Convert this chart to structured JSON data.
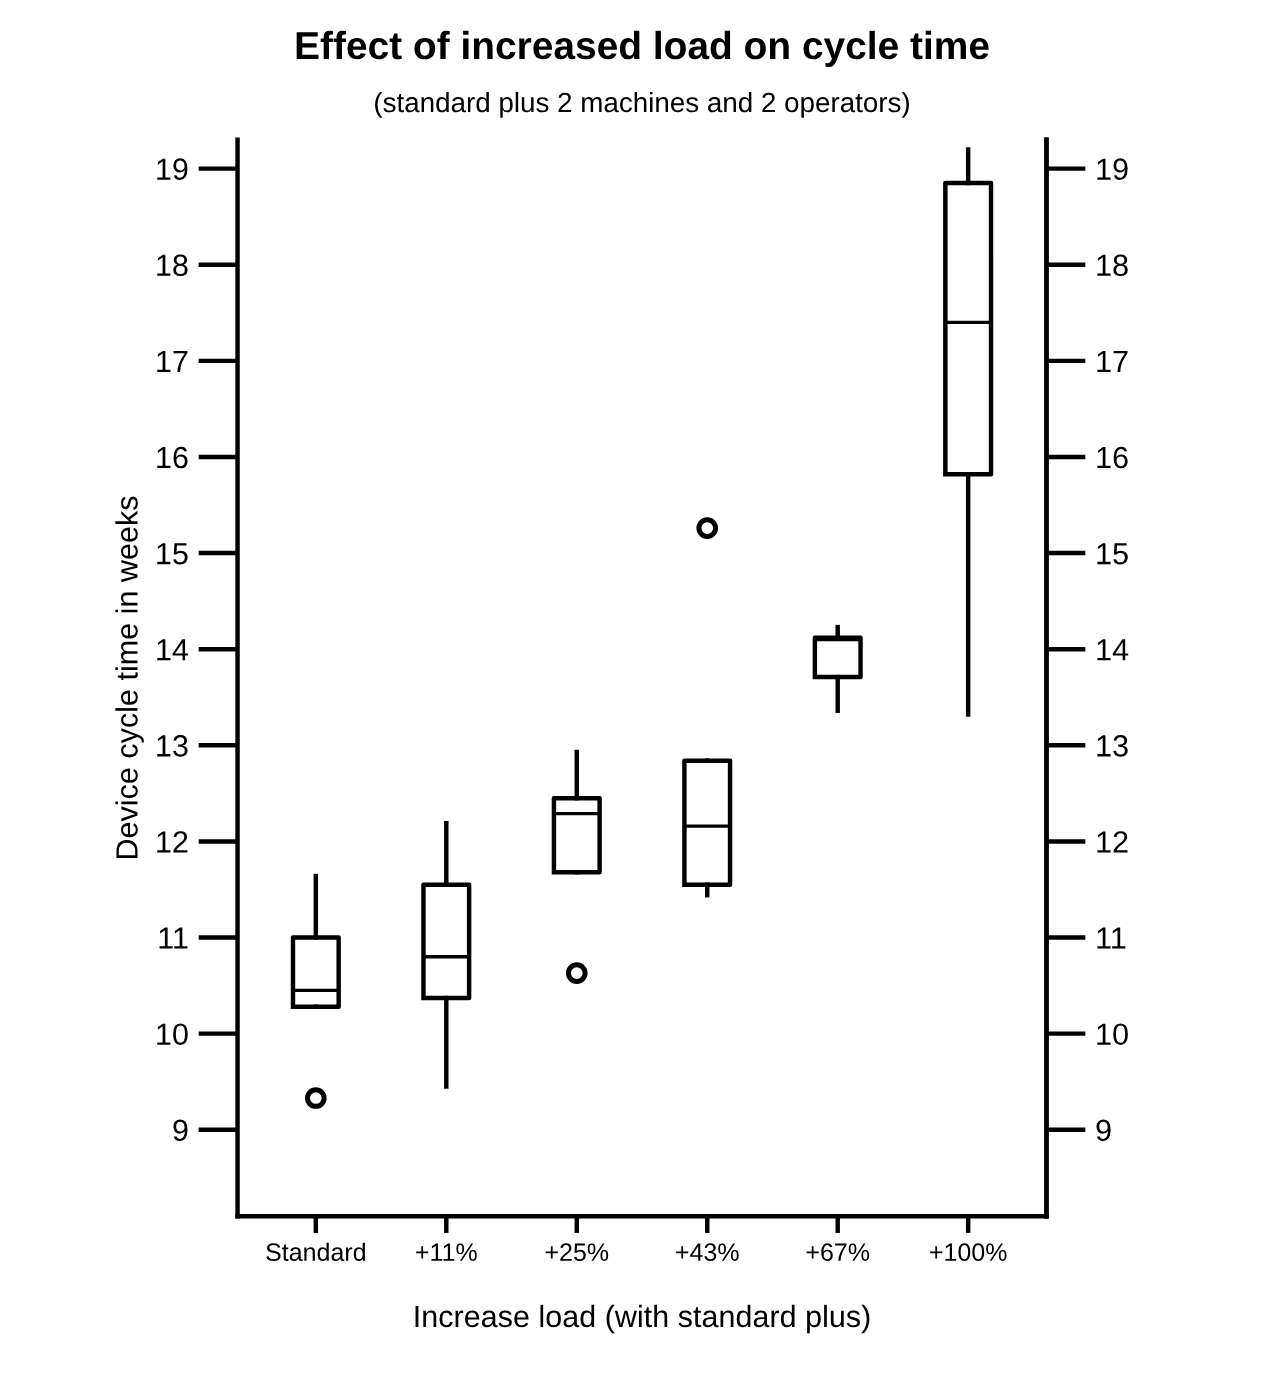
{
  "chart_data": {
    "type": "box",
    "title": "Effect of increased load on cycle time",
    "subtitle": "(standard plus 2 machines and 2 operators)",
    "xlabel": "Increase load (with standard plus)",
    "ylabel": "Device cycle time in weeks",
    "categories": [
      "Standard",
      "+11%",
      "+25%",
      "+43%",
      "+67%",
      "+100%"
    ],
    "boxes": [
      {
        "low": 10.28,
        "q1": 10.28,
        "median": 10.45,
        "q3": 11.0,
        "high": 11.64,
        "outliers": [
          9.33
        ]
      },
      {
        "low": 9.45,
        "q1": 10.37,
        "median": 10.8,
        "q3": 11.55,
        "high": 12.19
      },
      {
        "low": 11.68,
        "q1": 11.68,
        "median": 12.29,
        "q3": 12.45,
        "high": 12.93,
        "outliers": [
          10.63
        ]
      },
      {
        "low": 11.44,
        "q1": 11.55,
        "median": 12.16,
        "q3": 12.84,
        "high": 12.84,
        "outliers": [
          15.26
        ]
      },
      {
        "low": 13.36,
        "q1": 13.71,
        "median": 14.1,
        "q3": 14.12,
        "high": 14.23
      },
      {
        "low": 13.32,
        "q1": 15.82,
        "median": 17.4,
        "q3": 18.85,
        "high": 19.2
      }
    ],
    "ylim": [
      8.1,
      19.3
    ],
    "yticks": [
      9,
      10,
      11,
      12,
      13,
      14,
      15,
      16,
      17,
      18,
      19
    ],
    "y2lim": [
      8.1,
      19.3
    ],
    "y2ticks": [
      9,
      10,
      11,
      12,
      13,
      14,
      15,
      16,
      17,
      18,
      19
    ],
    "grid": false,
    "legend": false
  }
}
